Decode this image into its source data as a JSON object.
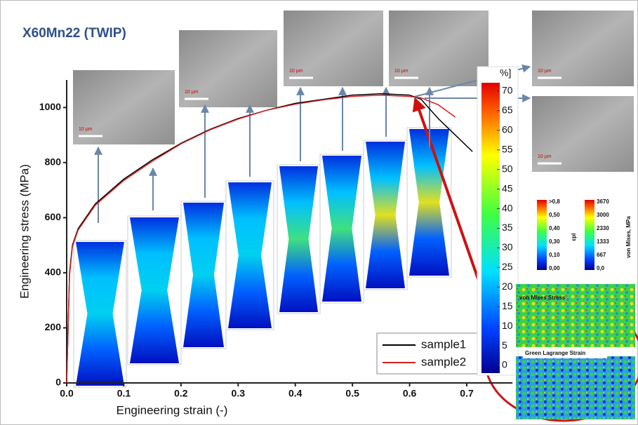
{
  "chart_data": {
    "type": "line",
    "title": "X60Mn22 (TWIP)",
    "x_label": "Engineering strain (-)",
    "y_label": "Engineering stress (MPa)",
    "x": [
      0,
      0.005,
      0.01,
      0.02,
      0.05,
      0.1,
      0.15,
      0.2,
      0.25,
      0.3,
      0.35,
      0.4,
      0.45,
      0.5,
      0.55,
      0.6,
      0.62,
      0.65,
      0.68,
      0.71
    ],
    "series": [
      {
        "name": "sample1",
        "color": "#000000",
        "values": [
          0,
          400,
          500,
          560,
          650,
          740,
          810,
          870,
          920,
          960,
          990,
          1015,
          1030,
          1045,
          1050,
          1045,
          1030,
          960,
          900,
          840
        ]
      },
      {
        "name": "sample2",
        "color": "#d62020",
        "values": [
          0,
          390,
          495,
          555,
          645,
          735,
          805,
          868,
          918,
          958,
          990,
          1012,
          1028,
          1040,
          1045,
          1040,
          1035,
          1010,
          965,
          null
        ]
      }
    ],
    "xlim": [
      0,
      0.78
    ],
    "ylim": [
      0,
      1100
    ],
    "xticks": [
      {
        "value": 0,
        "label": "0.0"
      },
      0.1,
      0.2,
      0.3,
      0.4,
      0.5,
      0.6,
      0.7
    ],
    "yticks": [
      0,
      200,
      400,
      600,
      800,
      1000
    ],
    "colorbar": {
      "label": "%]",
      "lim": [
        0,
        70
      ],
      "ticks": [
        0,
        5,
        10,
        15,
        20,
        25,
        30,
        35,
        40,
        45,
        50,
        55,
        60,
        65,
        70
      ]
    }
  },
  "micrographs": [
    {
      "scale": "10 µm"
    },
    {
      "scale": "10 µm"
    },
    {
      "scale": "10 µm"
    },
    {
      "scale": "10 µm"
    },
    {
      "scale": "10 µm"
    },
    {
      "scale": "10 µm"
    }
  ],
  "simulation": {
    "strain_label": "εpl",
    "strain_ticks": [
      ">0,8",
      "0,50",
      "0,40",
      "0,30",
      "0,10",
      "0,00"
    ],
    "stress_label": "von Mises, MPa",
    "stress_ticks": [
      "3670",
      "3000",
      "2330",
      "1333",
      "667",
      "0,0"
    ],
    "stress_map": "von Mises Stress",
    "strain_map": "Green Lagrange Strain"
  }
}
